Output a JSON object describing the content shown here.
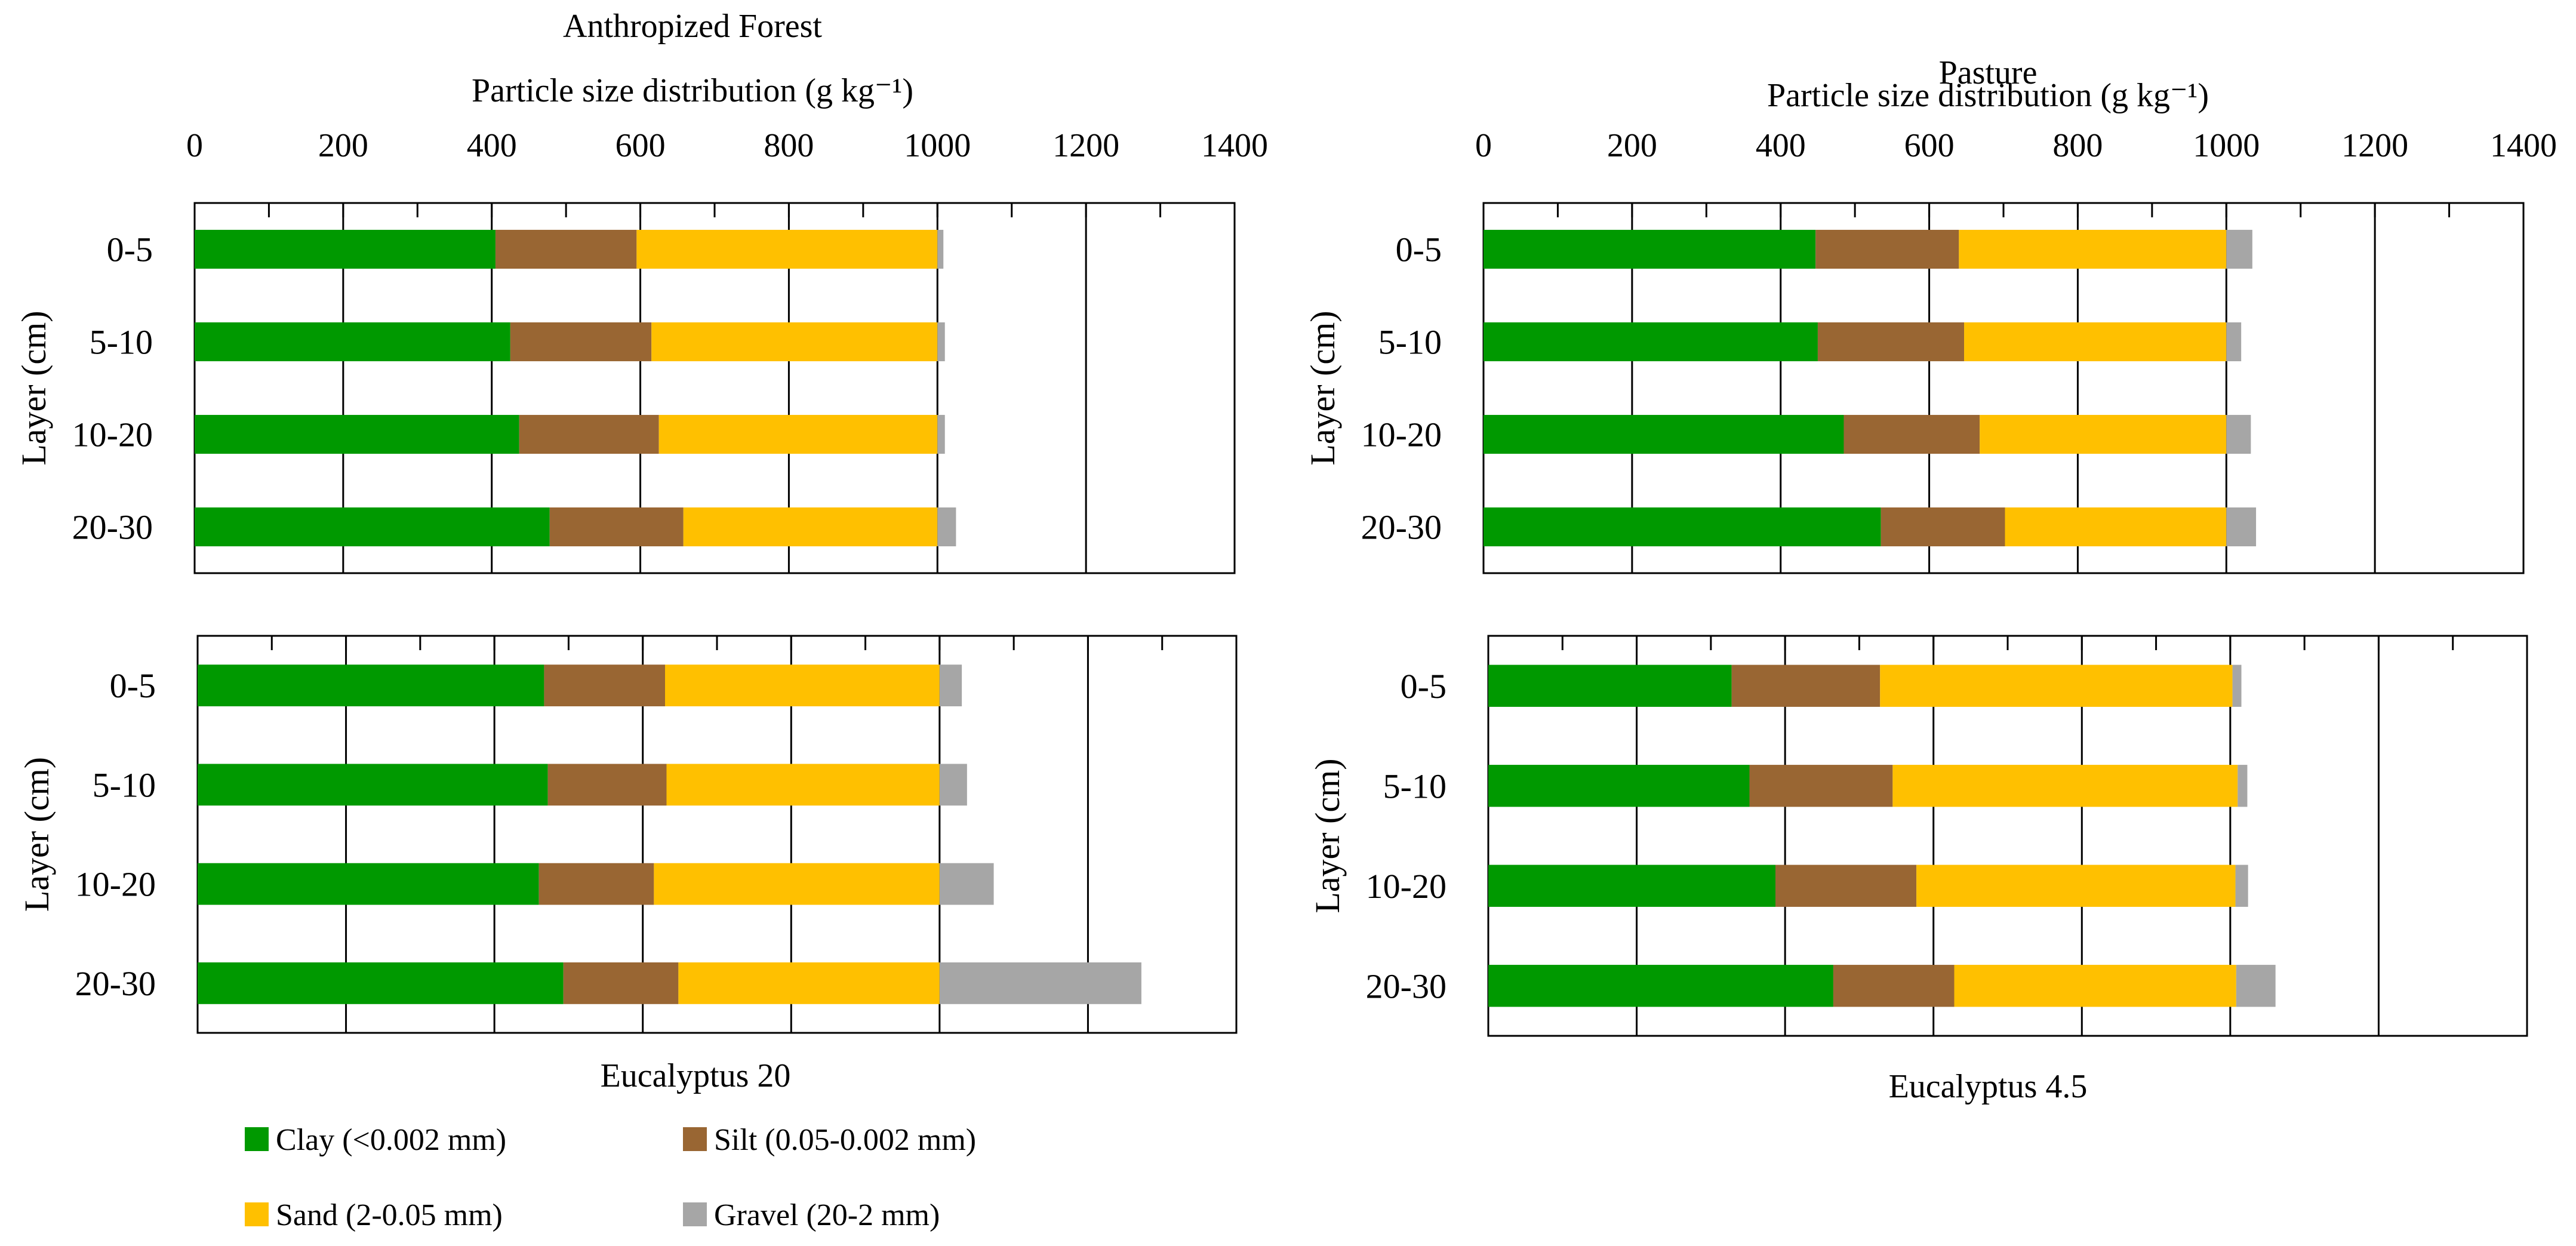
{
  "legend": {
    "clay": "Clay (<0.002 mm)",
    "silt": "Silt (0.05-0.002 mm)",
    "sand": "Sand (2-0.05 mm)",
    "gravel": "Gravel (20-2 mm)"
  },
  "colors": {
    "Clay": "#009900",
    "Silt": "#996633",
    "Sand": "#ffc000",
    "Gravel": "#a6a6a6"
  },
  "chart_data": [
    {
      "type": "bar",
      "orientation": "horizontal",
      "stacked": true,
      "title": "Anthropized Forest",
      "xlabel": "Particle size distribution (g kg⁻¹)",
      "ylabel": "Layer (cm)",
      "xlim": [
        0,
        1400
      ],
      "x_ticks": [
        0,
        200,
        400,
        600,
        800,
        1000,
        1200,
        1400
      ],
      "categories": [
        "0-5",
        "5-10",
        "10-20",
        "20-30"
      ],
      "series": [
        {
          "name": "Clay (<0.002 mm)",
          "values": [
            405,
            425,
            437,
            478
          ]
        },
        {
          "name": "Silt (0.05-0.002 mm)",
          "values": [
            190,
            190,
            188,
            180
          ]
        },
        {
          "name": "Sand (2-0.05 mm)",
          "values": [
            405,
            385,
            375,
            342
          ]
        },
        {
          "name": "Gravel (20-2 mm)",
          "values": [
            8,
            10,
            10,
            25
          ]
        }
      ]
    },
    {
      "type": "bar",
      "orientation": "horizontal",
      "stacked": true,
      "title": "Pasture",
      "xlabel": "Particle size distribution (g kg⁻¹)",
      "ylabel": "Layer (cm)",
      "xlim": [
        0,
        1400
      ],
      "x_ticks": [
        0,
        200,
        400,
        600,
        800,
        1000,
        1200,
        1400
      ],
      "categories": [
        "0-5",
        "5-10",
        "10-20",
        "20-30"
      ],
      "series": [
        {
          "name": "Clay (<0.002 mm)",
          "values": [
            447,
            450,
            485,
            535
          ]
        },
        {
          "name": "Silt (0.05-0.002 mm)",
          "values": [
            193,
            197,
            183,
            167
          ]
        },
        {
          "name": "Sand (2-0.05 mm)",
          "values": [
            360,
            353,
            332,
            298
          ]
        },
        {
          "name": "Gravel (20-2 mm)",
          "values": [
            35,
            20,
            33,
            40
          ]
        }
      ]
    },
    {
      "type": "bar",
      "orientation": "horizontal",
      "stacked": true,
      "title": "Eucalyptus 20",
      "xlabel": "",
      "ylabel": "Layer (cm)",
      "xlim": [
        0,
        1400
      ],
      "categories": [
        "0-5",
        "5-10",
        "10-20",
        "20-30"
      ],
      "series": [
        {
          "name": "Clay (<0.002 mm)",
          "values": [
            467,
            472,
            460,
            493
          ]
        },
        {
          "name": "Silt (0.05-0.002 mm)",
          "values": [
            163,
            160,
            155,
            155
          ]
        },
        {
          "name": "Sand (2-0.05 mm)",
          "values": [
            370,
            368,
            385,
            352
          ]
        },
        {
          "name": "Gravel (20-2 mm)",
          "values": [
            30,
            37,
            73,
            272
          ]
        }
      ]
    },
    {
      "type": "bar",
      "orientation": "horizontal",
      "stacked": true,
      "title": "Eucalyptus 4.5",
      "xlabel": "",
      "ylabel": "Layer (cm)",
      "xlim": [
        0,
        1400
      ],
      "categories": [
        "0-5",
        "5-10",
        "10-20",
        "20-30"
      ],
      "series": [
        {
          "name": "Clay (<0.002 mm)",
          "values": [
            328,
            352,
            387,
            465
          ]
        },
        {
          "name": "Silt (0.05-0.002 mm)",
          "values": [
            200,
            193,
            190,
            163
          ]
        },
        {
          "name": "Sand (2-0.05 mm)",
          "values": [
            475,
            465,
            430,
            380
          ]
        },
        {
          "name": "Gravel (20-2 mm)",
          "values": [
            12,
            13,
            17,
            53
          ]
        }
      ]
    }
  ]
}
